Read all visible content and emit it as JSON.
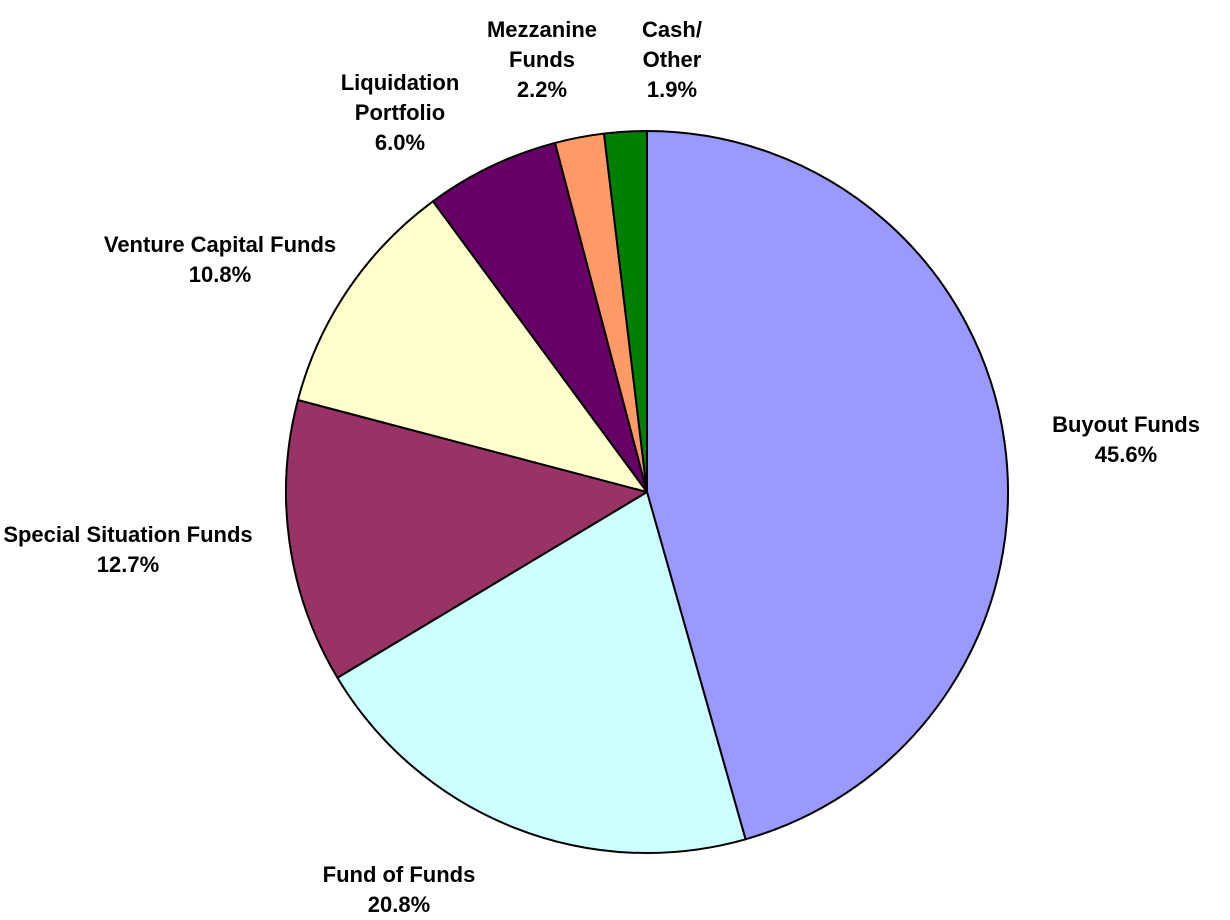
{
  "chart_data": {
    "type": "pie",
    "categories": [
      "Buyout Funds",
      "Fund of Funds",
      "Special Situation Funds",
      "Venture Capital Funds",
      "Liquidation Portfolio",
      "Mezzanine Funds",
      "Cash/Other"
    ],
    "values": [
      45.6,
      20.8,
      12.7,
      10.8,
      6.0,
      2.2,
      1.9
    ],
    "value_labels": [
      "45.6%",
      "20.8%",
      "12.7%",
      "10.8%",
      "6.0%",
      "2.2%",
      "1.9%"
    ],
    "colors": [
      "#9999ff",
      "#ccffff",
      "#993366",
      "#ffffcc",
      "#660066",
      "#ff9966",
      "#008000"
    ]
  }
}
